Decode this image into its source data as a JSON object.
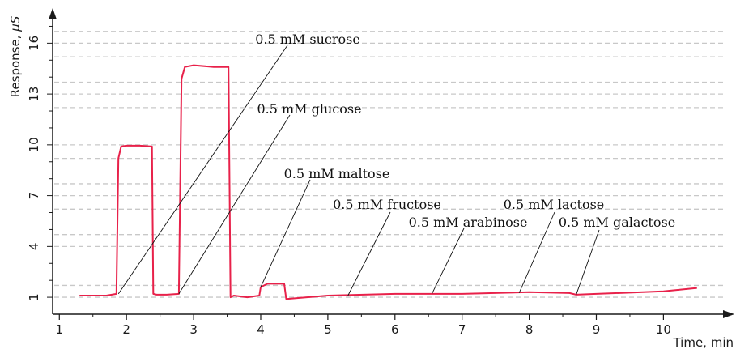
{
  "chart_data": {
    "type": "line",
    "xlabel": "Time, min",
    "ylabel": "Response, μS",
    "ylabel_prefix": "Response, ",
    "ylabel_unit": "μS",
    "xlim": [
      0.9,
      10.9
    ],
    "ylim": [
      0,
      17.5
    ],
    "xticks": [
      1,
      2,
      3,
      4,
      5,
      6,
      7,
      8,
      9,
      10
    ],
    "yticks": [
      1,
      4,
      7,
      10,
      13,
      16
    ],
    "grid_y": [
      1.7,
      4.7,
      6.2,
      7.7,
      9.2,
      12.2,
      13.7,
      15.2,
      16.7
    ],
    "grid": "horizontal dashed",
    "line_color": "#e8214a",
    "series": [
      {
        "x": [
          1.3,
          1.5,
          1.7,
          1.85,
          1.88,
          1.92,
          2.0,
          2.2,
          2.38,
          2.4,
          2.45,
          2.6,
          2.78,
          2.82,
          2.87,
          3.0,
          3.3,
          3.52,
          3.55,
          3.6,
          3.8,
          3.98,
          4.0,
          4.1,
          4.35,
          4.38,
          5.0,
          6.0,
          7.0,
          8.0,
          8.6,
          8.7,
          9.0,
          10.0,
          10.5
        ],
        "y": [
          1.1,
          1.1,
          1.1,
          1.2,
          9.2,
          9.9,
          9.95,
          9.95,
          9.9,
          1.2,
          1.15,
          1.15,
          1.2,
          13.9,
          14.6,
          14.7,
          14.6,
          14.6,
          1.0,
          1.1,
          1.0,
          1.1,
          1.6,
          1.8,
          1.8,
          0.9,
          1.1,
          1.2,
          1.2,
          1.3,
          1.25,
          1.15,
          1.2,
          1.35,
          1.55
        ]
      }
    ],
    "annotations": [
      {
        "label": "0.5 mM sucrose",
        "x": 1.88,
        "y": 1.2
      },
      {
        "label": "0.5 mM glucose",
        "x": 2.78,
        "y": 1.2
      },
      {
        "label": "0.5 mM maltose",
        "x": 4.0,
        "y": 1.6
      },
      {
        "label": "0.5 mM fructose",
        "x": 5.3,
        "y": 1.1
      },
      {
        "label": "0.5 mM arabinose",
        "x": 6.55,
        "y": 1.2
      },
      {
        "label": "0.5 mM lactose",
        "x": 7.85,
        "y": 1.25
      },
      {
        "label": "0.5 mM galactose",
        "x": 8.7,
        "y": 1.15
      }
    ]
  }
}
